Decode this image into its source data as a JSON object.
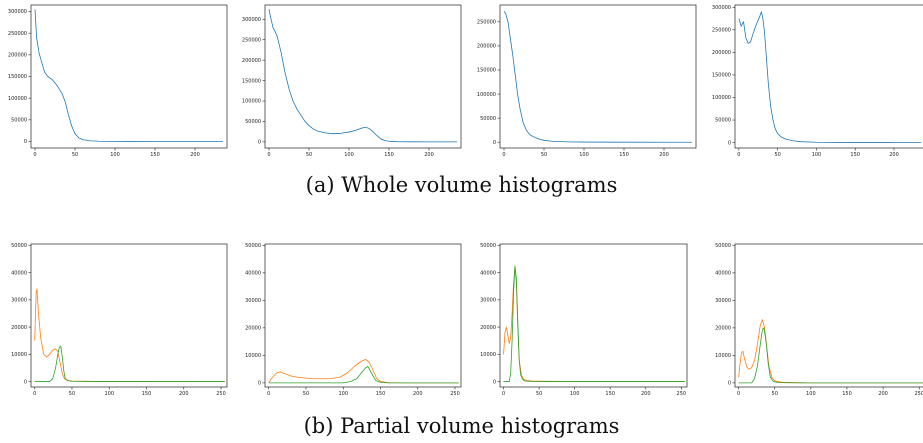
{
  "captions": {
    "a": "(a) Whole volume histograms",
    "b": "(b) Partial volume histograms"
  },
  "colors": {
    "blue": "#1f77b4",
    "orange": "#ff7f0e",
    "green": "#2ca02c"
  },
  "chart_data": [
    {
      "type": "line",
      "group": "whole",
      "xlim": [
        -5,
        240
      ],
      "ylim": [
        -15000,
        315000
      ],
      "xticks": [
        0,
        50,
        100,
        150,
        200
      ],
      "yticks": [
        0,
        50000,
        100000,
        150000,
        200000,
        250000,
        300000
      ],
      "series": [
        {
          "color": "blue",
          "points": [
            [
              0,
              305000
            ],
            [
              2,
              240000
            ],
            [
              5,
              205000
            ],
            [
              8,
              185000
            ],
            [
              12,
              160000
            ],
            [
              16,
              150000
            ],
            [
              22,
              142000
            ],
            [
              28,
              128000
            ],
            [
              34,
              110000
            ],
            [
              38,
              90000
            ],
            [
              42,
              60000
            ],
            [
              46,
              35000
            ],
            [
              50,
              18000
            ],
            [
              55,
              8000
            ],
            [
              60,
              4000
            ],
            [
              70,
              1500
            ],
            [
              80,
              600
            ],
            [
              100,
              200
            ],
            [
              150,
              50
            ],
            [
              200,
              0
            ],
            [
              235,
              0
            ]
          ]
        }
      ]
    },
    {
      "type": "line",
      "group": "whole",
      "xlim": [
        -5,
        240
      ],
      "ylim": [
        -15000,
        335000
      ],
      "xticks": [
        0,
        50,
        100,
        150,
        200
      ],
      "yticks": [
        0,
        50000,
        100000,
        150000,
        200000,
        250000,
        300000
      ],
      "series": [
        {
          "color": "blue",
          "points": [
            [
              0,
              325000
            ],
            [
              2,
              305000
            ],
            [
              5,
              280000
            ],
            [
              10,
              260000
            ],
            [
              15,
              220000
            ],
            [
              20,
              170000
            ],
            [
              25,
              130000
            ],
            [
              30,
              100000
            ],
            [
              35,
              80000
            ],
            [
              40,
              65000
            ],
            [
              45,
              50000
            ],
            [
              50,
              40000
            ],
            [
              55,
              32000
            ],
            [
              60,
              27000
            ],
            [
              70,
              22000
            ],
            [
              80,
              20000
            ],
            [
              90,
              21000
            ],
            [
              100,
              24000
            ],
            [
              108,
              28000
            ],
            [
              115,
              33000
            ],
            [
              120,
              36000
            ],
            [
              125,
              33000
            ],
            [
              130,
              25000
            ],
            [
              135,
              15000
            ],
            [
              140,
              7000
            ],
            [
              145,
              3000
            ],
            [
              150,
              1500
            ],
            [
              160,
              500
            ],
            [
              180,
              100
            ],
            [
              200,
              0
            ],
            [
              235,
              0
            ]
          ]
        }
      ]
    },
    {
      "type": "line",
      "group": "whole",
      "xlim": [
        -5,
        240
      ],
      "ylim": [
        -12000,
        285000
      ],
      "xticks": [
        0,
        50,
        100,
        150,
        200
      ],
      "yticks": [
        0,
        50000,
        100000,
        150000,
        200000,
        250000
      ],
      "series": [
        {
          "color": "blue",
          "points": [
            [
              0,
              272000
            ],
            [
              2,
              268000
            ],
            [
              5,
              250000
            ],
            [
              8,
              215000
            ],
            [
              11,
              180000
            ],
            [
              14,
              140000
            ],
            [
              17,
              100000
            ],
            [
              20,
              70000
            ],
            [
              24,
              40000
            ],
            [
              28,
              25000
            ],
            [
              32,
              16000
            ],
            [
              36,
              12000
            ],
            [
              40,
              9000
            ],
            [
              45,
              6000
            ],
            [
              50,
              4000
            ],
            [
              60,
              2000
            ],
            [
              80,
              800
            ],
            [
              100,
              300
            ],
            [
              150,
              50
            ],
            [
              200,
              0
            ],
            [
              235,
              0
            ]
          ]
        }
      ]
    },
    {
      "type": "line",
      "group": "whole",
      "xlim": [
        -5,
        240
      ],
      "ylim": [
        -12000,
        305000
      ],
      "xticks": [
        0,
        50,
        100,
        150,
        200
      ],
      "yticks": [
        0,
        50000,
        100000,
        150000,
        200000,
        250000,
        300000
      ],
      "series": [
        {
          "color": "blue",
          "points": [
            [
              0,
              275000
            ],
            [
              3,
              258000
            ],
            [
              6,
              268000
            ],
            [
              9,
              232000
            ],
            [
              12,
              220000
            ],
            [
              15,
              223000
            ],
            [
              18,
              240000
            ],
            [
              21,
              255000
            ],
            [
              24,
              268000
            ],
            [
              27,
              280000
            ],
            [
              29,
              290000
            ],
            [
              31,
              275000
            ],
            [
              33,
              245000
            ],
            [
              35,
              200000
            ],
            [
              38,
              130000
            ],
            [
              41,
              80000
            ],
            [
              44,
              50000
            ],
            [
              47,
              30000
            ],
            [
              50,
              20000
            ],
            [
              55,
              12000
            ],
            [
              60,
              8000
            ],
            [
              70,
              4000
            ],
            [
              80,
              2000
            ],
            [
              100,
              700
            ],
            [
              150,
              100
            ],
            [
              200,
              0
            ],
            [
              235,
              0
            ]
          ]
        }
      ]
    },
    {
      "type": "line",
      "group": "partial",
      "xlim": [
        -5,
        258
      ],
      "ylim": [
        -2000,
        50500
      ],
      "xticks": [
        0,
        50,
        100,
        150,
        200,
        250
      ],
      "yticks": [
        0,
        10000,
        20000,
        30000,
        40000,
        50000
      ],
      "series": [
        {
          "color": "orange",
          "points": [
            [
              0,
              15000
            ],
            [
              1,
              25000
            ],
            [
              2,
              33000
            ],
            [
              3,
              34000
            ],
            [
              5,
              25000
            ],
            [
              8,
              16000
            ],
            [
              12,
              10000
            ],
            [
              16,
              9000
            ],
            [
              20,
              10000
            ],
            [
              24,
              11500
            ],
            [
              28,
              12000
            ],
            [
              31,
              11000
            ],
            [
              34,
              7000
            ],
            [
              37,
              3000
            ],
            [
              40,
              1000
            ],
            [
              45,
              400
            ],
            [
              50,
              200
            ],
            [
              80,
              50
            ],
            [
              255,
              0
            ]
          ]
        },
        {
          "color": "green",
          "points": [
            [
              0,
              0
            ],
            [
              20,
              0
            ],
            [
              24,
              1000
            ],
            [
              28,
              5000
            ],
            [
              31,
              10000
            ],
            [
              33,
              12500
            ],
            [
              35,
              13000
            ],
            [
              37,
              9000
            ],
            [
              39,
              4000
            ],
            [
              41,
              1000
            ],
            [
              44,
              300
            ],
            [
              50,
              100
            ],
            [
              80,
              0
            ],
            [
              255,
              0
            ]
          ]
        }
      ]
    },
    {
      "type": "line",
      "group": "partial",
      "xlim": [
        -5,
        258
      ],
      "ylim": [
        -1500,
        50500
      ],
      "xticks": [
        0,
        50,
        100,
        150,
        200,
        250
      ],
      "yticks": [
        0,
        10000,
        20000,
        30000,
        40000,
        50000
      ],
      "series": [
        {
          "color": "orange",
          "points": [
            [
              0,
              100
            ],
            [
              5,
              2000
            ],
            [
              10,
              3500
            ],
            [
              15,
              4000
            ],
            [
              20,
              3500
            ],
            [
              30,
              2500
            ],
            [
              40,
              2000
            ],
            [
              60,
              1500
            ],
            [
              80,
              1500
            ],
            [
              95,
              2000
            ],
            [
              105,
              3500
            ],
            [
              115,
              6000
            ],
            [
              125,
              8000
            ],
            [
              130,
              8500
            ],
            [
              135,
              7500
            ],
            [
              140,
              4500
            ],
            [
              145,
              1500
            ],
            [
              150,
              500
            ],
            [
              160,
              100
            ],
            [
              180,
              0
            ],
            [
              255,
              0
            ]
          ]
        },
        {
          "color": "green",
          "points": [
            [
              0,
              0
            ],
            [
              100,
              0
            ],
            [
              110,
              500
            ],
            [
              118,
              1500
            ],
            [
              124,
              3500
            ],
            [
              130,
              5500
            ],
            [
              133,
              6000
            ],
            [
              136,
              4500
            ],
            [
              140,
              2500
            ],
            [
              144,
              800
            ],
            [
              150,
              200
            ],
            [
              160,
              0
            ],
            [
              255,
              0
            ]
          ]
        }
      ]
    },
    {
      "type": "line",
      "group": "partial",
      "xlim": [
        -5,
        258
      ],
      "ylim": [
        -2000,
        50500
      ],
      "xticks": [
        0,
        50,
        100,
        150,
        200,
        250
      ],
      "yticks": [
        0,
        10000,
        20000,
        30000,
        40000,
        50000
      ],
      "series": [
        {
          "color": "orange",
          "points": [
            [
              0,
              10000
            ],
            [
              2,
              18000
            ],
            [
              4,
              20000
            ],
            [
              6,
              17000
            ],
            [
              8,
              14000
            ],
            [
              10,
              16000
            ],
            [
              12,
              25000
            ],
            [
              14,
              36000
            ],
            [
              16,
              42000
            ],
            [
              18,
              36000
            ],
            [
              20,
              20000
            ],
            [
              22,
              8000
            ],
            [
              25,
              2500
            ],
            [
              28,
              900
            ],
            [
              32,
              400
            ],
            [
              40,
              200
            ],
            [
              60,
              100
            ],
            [
              100,
              0
            ],
            [
              255,
              0
            ]
          ]
        },
        {
          "color": "green",
          "points": [
            [
              0,
              0
            ],
            [
              8,
              0
            ],
            [
              10,
              3000
            ],
            [
              12,
              15000
            ],
            [
              14,
              32000
            ],
            [
              16,
              42500
            ],
            [
              18,
              38000
            ],
            [
              20,
              22000
            ],
            [
              22,
              8000
            ],
            [
              24,
              2500
            ],
            [
              27,
              800
            ],
            [
              30,
              200
            ],
            [
              40,
              50
            ],
            [
              60,
              0
            ],
            [
              255,
              0
            ]
          ]
        }
      ]
    },
    {
      "type": "line",
      "group": "partial",
      "xlim": [
        -5,
        258
      ],
      "ylim": [
        -1500,
        50500
      ],
      "xticks": [
        0,
        50,
        100,
        150,
        200,
        250
      ],
      "yticks": [
        0,
        10000,
        20000,
        30000,
        40000,
        50000
      ],
      "series": [
        {
          "color": "orange",
          "points": [
            [
              0,
              2000
            ],
            [
              2,
              7000
            ],
            [
              4,
              11000
            ],
            [
              6,
              11500
            ],
            [
              8,
              9000
            ],
            [
              11,
              6000
            ],
            [
              14,
              5000
            ],
            [
              18,
              5500
            ],
            [
              22,
              8000
            ],
            [
              26,
              14000
            ],
            [
              30,
              21000
            ],
            [
              33,
              23000
            ],
            [
              36,
              20000
            ],
            [
              39,
              13000
            ],
            [
              42,
              6000
            ],
            [
              46,
              2000
            ],
            [
              50,
              700
            ],
            [
              60,
              200
            ],
            [
              100,
              0
            ],
            [
              255,
              0
            ]
          ]
        },
        {
          "color": "green",
          "points": [
            [
              0,
              0
            ],
            [
              18,
              0
            ],
            [
              22,
              1500
            ],
            [
              26,
              6000
            ],
            [
              30,
              14000
            ],
            [
              33,
              19500
            ],
            [
              35,
              20000
            ],
            [
              38,
              15000
            ],
            [
              41,
              7000
            ],
            [
              44,
              2000
            ],
            [
              48,
              500
            ],
            [
              55,
              100
            ],
            [
              80,
              0
            ],
            [
              255,
              0
            ]
          ]
        }
      ]
    }
  ]
}
